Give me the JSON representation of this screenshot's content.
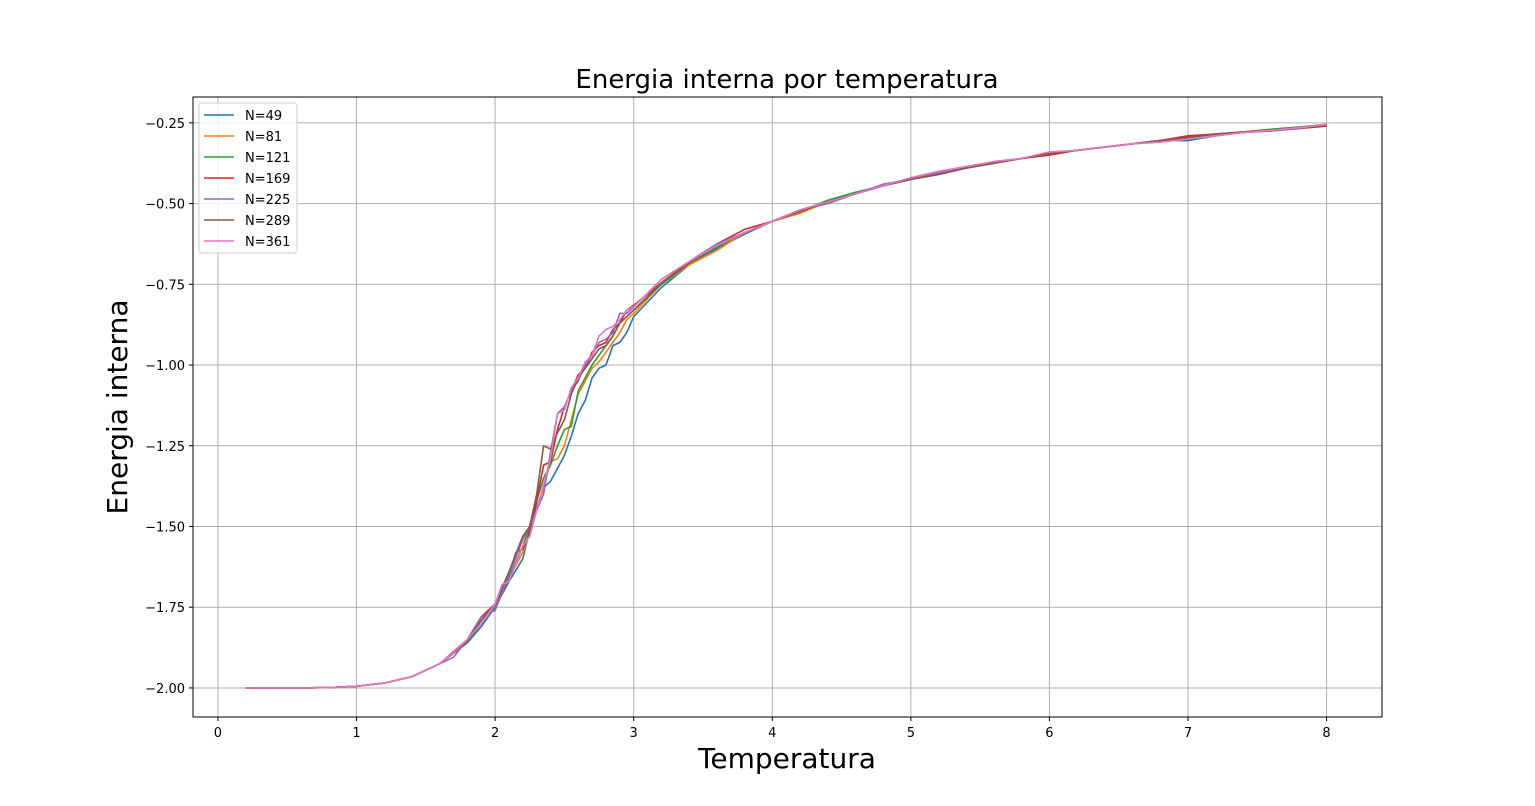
{
  "chart_data": {
    "type": "line",
    "title": "Energia interna por temperatura",
    "xlabel": "Temperatura",
    "ylabel": "Energia interna",
    "xlim": [
      -0.18,
      8.4
    ],
    "ylim": [
      -2.09,
      -0.17
    ],
    "xticks": [
      0,
      1,
      2,
      3,
      4,
      5,
      6,
      7,
      8
    ],
    "xtick_labels": [
      "0",
      "1",
      "2",
      "3",
      "4",
      "5",
      "6",
      "7",
      "8"
    ],
    "yticks": [
      -2.0,
      -1.75,
      -1.5,
      -1.25,
      -1.0,
      -0.75,
      -0.5,
      -0.25
    ],
    "ytick_labels": [
      "−2.00",
      "−1.75",
      "−1.50",
      "−1.25",
      "−1.00",
      "−0.75",
      "−0.50",
      "−0.25"
    ],
    "grid": true,
    "legend_position": "upper-left",
    "series": [
      {
        "name": "N=49",
        "color": "#1f77b4",
        "x": [
          0.2,
          0.4,
          0.6,
          0.8,
          1.0,
          1.2,
          1.4,
          1.6,
          1.8,
          1.9,
          2.0,
          2.1,
          2.2,
          2.25,
          2.3,
          2.35,
          2.4,
          2.45,
          2.5,
          2.55,
          2.6,
          2.65,
          2.7,
          2.75,
          2.8,
          2.85,
          2.9,
          2.95,
          3.0,
          3.2,
          3.4,
          3.6,
          3.8,
          4.0,
          4.2,
          4.4,
          4.6,
          4.8,
          5.0,
          5.2,
          5.4,
          5.6,
          5.8,
          6.0,
          6.2,
          6.4,
          6.6,
          6.8,
          7.0,
          7.2,
          7.4,
          7.6,
          7.8,
          8.0
        ],
        "y": [
          -2.0,
          -2.0,
          -2.0,
          -1.999,
          -1.995,
          -1.985,
          -1.965,
          -1.925,
          -1.86,
          -1.81,
          -1.75,
          -1.67,
          -1.6,
          -1.51,
          -1.44,
          -1.38,
          -1.36,
          -1.32,
          -1.28,
          -1.22,
          -1.15,
          -1.11,
          -1.04,
          -1.01,
          -1.0,
          -0.94,
          -0.93,
          -0.9,
          -0.85,
          -0.76,
          -0.69,
          -0.64,
          -0.595,
          -0.555,
          -0.52,
          -0.495,
          -0.47,
          -0.445,
          -0.425,
          -0.41,
          -0.39,
          -0.375,
          -0.36,
          -0.345,
          -0.335,
          -0.325,
          -0.315,
          -0.305,
          -0.305,
          -0.29,
          -0.28,
          -0.275,
          -0.265,
          -0.255
        ]
      },
      {
        "name": "N=81",
        "color": "#ff7f0e",
        "x": [
          0.2,
          0.4,
          0.6,
          0.8,
          1.0,
          1.2,
          1.4,
          1.6,
          1.8,
          1.9,
          2.0,
          2.1,
          2.2,
          2.25,
          2.3,
          2.35,
          2.4,
          2.45,
          2.5,
          2.55,
          2.6,
          2.65,
          2.7,
          2.75,
          2.8,
          2.85,
          2.9,
          2.95,
          3.0,
          3.2,
          3.4,
          3.6,
          3.8,
          4.0,
          4.2,
          4.4,
          4.6,
          4.8,
          5.0,
          5.2,
          5.4,
          5.6,
          5.8,
          6.0,
          6.2,
          6.4,
          6.6,
          6.8,
          7.0,
          7.2,
          7.4,
          7.6,
          7.8,
          8.0
        ],
        "y": [
          -2.0,
          -2.0,
          -2.0,
          -1.999,
          -1.995,
          -1.985,
          -1.965,
          -1.925,
          -1.855,
          -1.8,
          -1.74,
          -1.66,
          -1.58,
          -1.52,
          -1.45,
          -1.38,
          -1.3,
          -1.29,
          -1.25,
          -1.17,
          -1.09,
          -1.05,
          -1.01,
          -0.99,
          -0.96,
          -0.93,
          -0.9,
          -0.86,
          -0.84,
          -0.75,
          -0.69,
          -0.645,
          -0.59,
          -0.555,
          -0.53,
          -0.495,
          -0.47,
          -0.445,
          -0.425,
          -0.405,
          -0.39,
          -0.375,
          -0.36,
          -0.345,
          -0.335,
          -0.325,
          -0.315,
          -0.305,
          -0.295,
          -0.285,
          -0.278,
          -0.27,
          -0.263,
          -0.255
        ]
      },
      {
        "name": "N=121",
        "color": "#2ca02c",
        "x": [
          0.2,
          0.4,
          0.6,
          0.8,
          1.0,
          1.2,
          1.4,
          1.6,
          1.8,
          1.9,
          2.0,
          2.1,
          2.2,
          2.25,
          2.3,
          2.35,
          2.4,
          2.45,
          2.5,
          2.55,
          2.6,
          2.65,
          2.7,
          2.75,
          2.8,
          2.85,
          2.9,
          2.95,
          3.0,
          3.2,
          3.4,
          3.6,
          3.8,
          4.0,
          4.2,
          4.4,
          4.6,
          4.8,
          5.0,
          5.2,
          5.4,
          5.6,
          5.8,
          6.0,
          6.2,
          6.4,
          6.6,
          6.8,
          7.0,
          7.2,
          7.4,
          7.6,
          7.8,
          8.0
        ],
        "y": [
          -2.0,
          -2.0,
          -2.0,
          -1.999,
          -1.995,
          -1.985,
          -1.965,
          -1.925,
          -1.855,
          -1.8,
          -1.74,
          -1.66,
          -1.56,
          -1.5,
          -1.42,
          -1.35,
          -1.31,
          -1.25,
          -1.2,
          -1.19,
          -1.08,
          -1.04,
          -1.0,
          -0.97,
          -0.94,
          -0.91,
          -0.87,
          -0.85,
          -0.83,
          -0.75,
          -0.685,
          -0.635,
          -0.59,
          -0.555,
          -0.525,
          -0.49,
          -0.465,
          -0.445,
          -0.425,
          -0.405,
          -0.39,
          -0.375,
          -0.36,
          -0.345,
          -0.335,
          -0.325,
          -0.315,
          -0.305,
          -0.295,
          -0.285,
          -0.278,
          -0.27,
          -0.263,
          -0.255
        ]
      },
      {
        "name": "N=169",
        "color": "#d62728",
        "x": [
          0.2,
          0.4,
          0.6,
          0.8,
          1.0,
          1.2,
          1.4,
          1.6,
          1.8,
          1.9,
          2.0,
          2.1,
          2.15,
          2.2,
          2.25,
          2.3,
          2.35,
          2.4,
          2.45,
          2.5,
          2.55,
          2.6,
          2.65,
          2.7,
          2.75,
          2.8,
          2.85,
          2.9,
          2.95,
          3.0,
          3.2,
          3.4,
          3.6,
          3.8,
          4.0,
          4.2,
          4.4,
          4.6,
          4.8,
          5.0,
          5.2,
          5.4,
          5.6,
          5.8,
          6.0,
          6.2,
          6.4,
          6.6,
          6.8,
          7.0,
          7.2,
          7.4,
          7.6,
          7.8,
          8.0
        ],
        "y": [
          -2.0,
          -2.0,
          -2.0,
          -1.999,
          -1.995,
          -1.985,
          -1.965,
          -1.925,
          -1.85,
          -1.78,
          -1.74,
          -1.65,
          -1.58,
          -1.57,
          -1.52,
          -1.42,
          -1.31,
          -1.3,
          -1.2,
          -1.13,
          -1.08,
          -1.03,
          -1.01,
          -0.96,
          -0.94,
          -0.93,
          -0.89,
          -0.87,
          -0.83,
          -0.815,
          -0.745,
          -0.68,
          -0.625,
          -0.58,
          -0.555,
          -0.52,
          -0.495,
          -0.47,
          -0.445,
          -0.425,
          -0.41,
          -0.39,
          -0.375,
          -0.36,
          -0.35,
          -0.335,
          -0.325,
          -0.315,
          -0.305,
          -0.29,
          -0.285,
          -0.278,
          -0.273,
          -0.268,
          -0.26
        ]
      },
      {
        "name": "N=225",
        "color": "#9467bd",
        "x": [
          0.2,
          0.4,
          0.6,
          0.8,
          1.0,
          1.2,
          1.4,
          1.6,
          1.7,
          1.8,
          1.9,
          2.0,
          2.1,
          2.2,
          2.25,
          2.3,
          2.35,
          2.4,
          2.45,
          2.5,
          2.55,
          2.6,
          2.65,
          2.7,
          2.75,
          2.8,
          2.85,
          2.9,
          2.95,
          3.0,
          3.2,
          3.4,
          3.6,
          3.8,
          4.0,
          4.2,
          4.4,
          4.6,
          4.8,
          5.0,
          5.2,
          5.4,
          5.6,
          5.8,
          6.0,
          6.2,
          6.4,
          6.6,
          6.8,
          7.0,
          7.2,
          7.4,
          7.6,
          7.8,
          8.0
        ],
        "y": [
          -2.0,
          -2.0,
          -2.0,
          -1.999,
          -1.995,
          -1.985,
          -1.965,
          -1.925,
          -1.905,
          -1.85,
          -1.78,
          -1.76,
          -1.65,
          -1.54,
          -1.5,
          -1.45,
          -1.4,
          -1.27,
          -1.15,
          -1.13,
          -1.08,
          -1.05,
          -1.0,
          -0.97,
          -0.93,
          -0.92,
          -0.9,
          -0.84,
          -0.84,
          -0.82,
          -0.735,
          -0.68,
          -0.625,
          -0.59,
          -0.555,
          -0.52,
          -0.5,
          -0.47,
          -0.44,
          -0.425,
          -0.405,
          -0.39,
          -0.37,
          -0.36,
          -0.345,
          -0.335,
          -0.325,
          -0.315,
          -0.305,
          -0.3,
          -0.29,
          -0.28,
          -0.275,
          -0.268,
          -0.255
        ]
      },
      {
        "name": "N=289",
        "color": "#8c564b",
        "x": [
          0.2,
          0.4,
          0.6,
          0.8,
          1.0,
          1.2,
          1.4,
          1.6,
          1.8,
          1.9,
          2.0,
          2.1,
          2.2,
          2.25,
          2.3,
          2.35,
          2.4,
          2.45,
          2.5,
          2.55,
          2.6,
          2.65,
          2.7,
          2.75,
          2.8,
          2.85,
          2.9,
          2.95,
          3.0,
          3.2,
          3.4,
          3.6,
          3.8,
          4.0,
          4.2,
          4.4,
          4.6,
          4.8,
          5.0,
          5.2,
          5.4,
          5.6,
          5.8,
          6.0,
          6.2,
          6.4,
          6.6,
          6.8,
          7.0,
          7.2,
          7.4,
          7.6,
          7.8,
          8.0
        ],
        "y": [
          -2.0,
          -2.0,
          -2.0,
          -1.999,
          -1.995,
          -1.985,
          -1.965,
          -1.925,
          -1.855,
          -1.79,
          -1.74,
          -1.64,
          -1.53,
          -1.5,
          -1.4,
          -1.25,
          -1.26,
          -1.21,
          -1.17,
          -1.09,
          -1.04,
          -1.01,
          -0.98,
          -0.95,
          -0.94,
          -0.91,
          -0.87,
          -0.85,
          -0.83,
          -0.745,
          -0.685,
          -0.63,
          -0.59,
          -0.555,
          -0.525,
          -0.495,
          -0.47,
          -0.445,
          -0.425,
          -0.41,
          -0.39,
          -0.375,
          -0.36,
          -0.345,
          -0.335,
          -0.325,
          -0.315,
          -0.305,
          -0.295,
          -0.285,
          -0.28,
          -0.273,
          -0.265,
          -0.258
        ]
      },
      {
        "name": "N=361",
        "color": "#e377c2",
        "x": [
          0.2,
          0.4,
          0.6,
          0.8,
          1.0,
          1.2,
          1.4,
          1.6,
          1.7,
          1.8,
          1.9,
          2.0,
          2.05,
          2.1,
          2.2,
          2.25,
          2.3,
          2.35,
          2.4,
          2.45,
          2.5,
          2.55,
          2.6,
          2.65,
          2.7,
          2.75,
          2.8,
          2.85,
          2.9,
          2.95,
          3.0,
          3.2,
          3.4,
          3.6,
          3.8,
          4.0,
          4.2,
          4.4,
          4.6,
          4.8,
          5.0,
          5.2,
          5.4,
          5.6,
          5.8,
          6.0,
          6.2,
          6.4,
          6.6,
          6.8,
          7.0,
          7.2,
          7.4,
          7.6,
          7.8,
          8.0
        ],
        "y": [
          -2.0,
          -2.0,
          -2.0,
          -1.999,
          -1.995,
          -1.985,
          -1.965,
          -1.925,
          -1.89,
          -1.85,
          -1.8,
          -1.74,
          -1.68,
          -1.67,
          -1.56,
          -1.53,
          -1.45,
          -1.37,
          -1.29,
          -1.15,
          -1.14,
          -1.07,
          -1.04,
          -0.99,
          -0.97,
          -0.91,
          -0.89,
          -0.88,
          -0.86,
          -0.83,
          -0.82,
          -0.735,
          -0.68,
          -0.63,
          -0.59,
          -0.555,
          -0.52,
          -0.495,
          -0.47,
          -0.445,
          -0.42,
          -0.4,
          -0.385,
          -0.37,
          -0.36,
          -0.34,
          -0.335,
          -0.325,
          -0.315,
          -0.31,
          -0.3,
          -0.29,
          -0.28,
          -0.273,
          -0.265,
          -0.255
        ]
      }
    ]
  }
}
